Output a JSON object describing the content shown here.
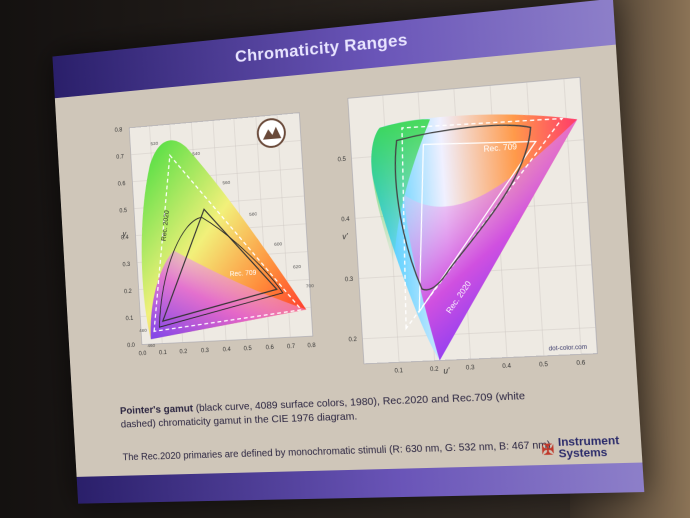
{
  "slide": {
    "title": "Chromaticity Ranges",
    "caption_bold": "Pointer's gamut",
    "caption_rest": " (black curve, 4089 surface colors, 1980), Rec.2020 and Rec.709 (white dashed) chromaticity gamut in the CIE 1976 diagram.",
    "note": "The Rec.2020 primaries are defined by monochromatic stimuli (R: 630 nm, G: 532 nm, B: 467 nm).",
    "logo_line1": "Instrument",
    "logo_line2": "Systems",
    "credit": "dot-color.com"
  },
  "left_diagram": {
    "label_rec2020": "Rec. 2020",
    "label_rec709": "Rec. 709",
    "x_ticks": [
      "0.0",
      "0.1",
      "0.2",
      "0.3",
      "0.4",
      "0.5",
      "0.6",
      "0.7",
      "0.8"
    ],
    "y_ticks": [
      "0.0",
      "0.1",
      "0.2",
      "0.3",
      "0.4",
      "0.5",
      "0.6",
      "0.7",
      "0.8"
    ],
    "y_label": "y",
    "wavelengths": [
      "520",
      "540",
      "560",
      "580",
      "600",
      "620",
      "700",
      "480",
      "460"
    ]
  },
  "right_diagram": {
    "label_rec2020": "Rec. 2020",
    "label_rec709": "Rec. 709",
    "x_ticks": [
      "0.1",
      "0.2",
      "0.3",
      "0.4",
      "0.5",
      "0.6"
    ],
    "y_ticks": [
      "0.2",
      "0.3",
      "0.4",
      "0.5"
    ],
    "x_label": "u'",
    "y_label": "v'"
  }
}
